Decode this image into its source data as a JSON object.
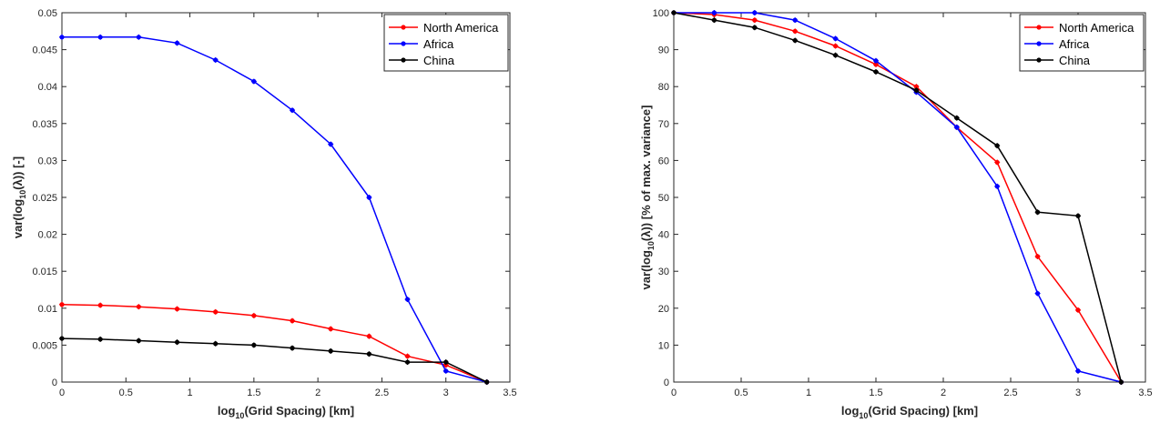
{
  "chart_data": [
    {
      "type": "line",
      "xlabel": {
        "pre": "log",
        "sub": "10",
        "post": "(Grid Spacing) [km]"
      },
      "ylabel": {
        "pre": "var(log",
        "sub": "10",
        "post": "(λ)) [-]"
      },
      "xlim": [
        0,
        3.5
      ],
      "ylim": [
        0,
        0.05
      ],
      "xticks": [
        0,
        0.5,
        1,
        1.5,
        2,
        2.5,
        3,
        3.5
      ],
      "yticks": [
        0,
        0.005,
        0.01,
        0.015,
        0.02,
        0.025,
        0.03,
        0.035,
        0.04,
        0.045,
        0.05
      ],
      "xtick_labels": [
        "0",
        "0.5",
        "1",
        "1.5",
        "2",
        "2.5",
        "3",
        "3.5"
      ],
      "ytick_labels": [
        "0",
        "0.005",
        "0.01",
        "0.015",
        "0.02",
        "0.025",
        "0.03",
        "0.035",
        "0.04",
        "0.045",
        "0.05"
      ],
      "grid": false,
      "legend": "top-right",
      "x": [
        0,
        0.3,
        0.6,
        0.9,
        1.2,
        1.5,
        1.8,
        2.1,
        2.4,
        2.7,
        3.0,
        3.32
      ],
      "series": [
        {
          "name": "North America",
          "color": "#ff0000",
          "values": [
            0.0105,
            0.0104,
            0.0102,
            0.0099,
            0.0095,
            0.009,
            0.0083,
            0.0072,
            0.0062,
            0.0035,
            0.0023,
            0.0
          ]
        },
        {
          "name": "Africa",
          "color": "#0000ff",
          "values": [
            0.0467,
            0.0467,
            0.0467,
            0.0459,
            0.0436,
            0.0407,
            0.0368,
            0.0322,
            0.025,
            0.0112,
            0.0015,
            0.0
          ]
        },
        {
          "name": "China",
          "color": "#000000",
          "values": [
            0.0059,
            0.0058,
            0.0056,
            0.0054,
            0.0052,
            0.005,
            0.0046,
            0.0042,
            0.0038,
            0.0027,
            0.0027,
            0.0
          ]
        }
      ]
    },
    {
      "type": "line",
      "xlabel": {
        "pre": "log",
        "sub": "10",
        "post": "(Grid Spacing) [km]"
      },
      "ylabel": {
        "pre": "var(log",
        "sub": "10",
        "post": "(λ)) [% of max. variance]"
      },
      "xlim": [
        0,
        3.5
      ],
      "ylim": [
        0,
        100
      ],
      "xticks": [
        0,
        0.5,
        1,
        1.5,
        2,
        2.5,
        3,
        3.5
      ],
      "yticks": [
        0,
        10,
        20,
        30,
        40,
        50,
        60,
        70,
        80,
        90,
        100
      ],
      "xtick_labels": [
        "0",
        "0.5",
        "1",
        "1.5",
        "2",
        "2.5",
        "3",
        "3.5"
      ],
      "ytick_labels": [
        "0",
        "10",
        "20",
        "30",
        "40",
        "50",
        "60",
        "70",
        "80",
        "90",
        "100"
      ],
      "grid": false,
      "legend": "top-right",
      "x": [
        0,
        0.3,
        0.6,
        0.9,
        1.2,
        1.5,
        1.8,
        2.1,
        2.4,
        2.7,
        3.0,
        3.32
      ],
      "series": [
        {
          "name": "North America",
          "color": "#ff0000",
          "values": [
            100,
            99.5,
            98,
            95,
            91,
            86,
            80,
            69,
            59.5,
            34,
            19.5,
            0
          ]
        },
        {
          "name": "Africa",
          "color": "#0000ff",
          "values": [
            100,
            100,
            100,
            98,
            93,
            87,
            78.5,
            69,
            53,
            24,
            3,
            0
          ]
        },
        {
          "name": "China",
          "color": "#000000",
          "values": [
            100,
            98,
            96,
            92.5,
            88.5,
            84,
            79,
            71.5,
            64,
            46,
            45,
            0
          ]
        }
      ]
    }
  ]
}
